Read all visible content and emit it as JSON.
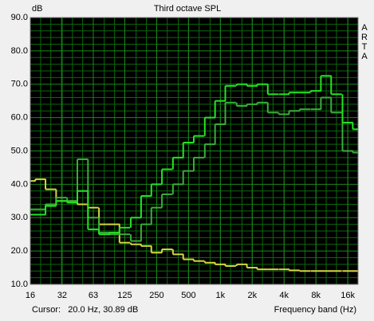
{
  "chart_data": {
    "type": "step",
    "title": "Third octave SPL",
    "y_label": "dB",
    "brand": "ARTA",
    "cursor": "Cursor:   20.0 Hz, 30.89 dB",
    "x_label": "Frequency band (Hz)",
    "log_x": true,
    "grid": true,
    "x": [
      16,
      20,
      25,
      31.5,
      40,
      50,
      63,
      80,
      100,
      125,
      160,
      200,
      250,
      315,
      400,
      500,
      630,
      800,
      1000,
      1250,
      1600,
      2000,
      2500,
      3150,
      4000,
      5000,
      6300,
      8000,
      10000,
      12500,
      16000,
      20000
    ],
    "xlim": [
      16,
      20000
    ],
    "xticks": [
      16,
      32,
      63,
      125,
      250,
      500,
      {
        "value": 1000,
        "label": "1k"
      },
      {
        "value": 2000,
        "label": "2k"
      },
      {
        "value": 4000,
        "label": "4k"
      },
      {
        "value": 8000,
        "label": "8k"
      },
      {
        "value": 16000,
        "label": "16k"
      }
    ],
    "ylim": [
      10,
      90
    ],
    "yticks": [
      {
        "value": 10,
        "label": "10.0"
      },
      {
        "value": 20,
        "label": "20.0"
      },
      {
        "value": 30,
        "label": "30.0"
      },
      {
        "value": 40,
        "label": "40.0"
      },
      {
        "value": 50,
        "label": "50.0"
      },
      {
        "value": 60,
        "label": "60.0"
      },
      {
        "value": 70,
        "label": "70.0"
      },
      {
        "value": 80,
        "label": "80.0"
      },
      {
        "value": 90,
        "label": "90.0"
      }
    ],
    "series": [
      {
        "color": "#d6d63c",
        "values": [
          41,
          41.5,
          38.5,
          35,
          35,
          34,
          33,
          28,
          28,
          22.5,
          22,
          21.5,
          19.5,
          20.5,
          19,
          17.5,
          17,
          16.5,
          16,
          15.5,
          16,
          15,
          14.5,
          14.5,
          14.5,
          14.2,
          14,
          14,
          14,
          14,
          14,
          14
        ]
      },
      {
        "color": "#3aae3a",
        "values": [
          32.5,
          32.5,
          34,
          36,
          35,
          47.5,
          30,
          25.5,
          25,
          25,
          23,
          28,
          33,
          37,
          40,
          44,
          48,
          52,
          58,
          64.5,
          63.5,
          64,
          64.5,
          61.5,
          61,
          62,
          62.5,
          62.5,
          66,
          61.5,
          50,
          49.5
        ]
      },
      {
        "color": "#22e622",
        "values": [
          30.9,
          30.9,
          33.5,
          35,
          34.5,
          38,
          26.5,
          25,
          25.5,
          27,
          30,
          36.5,
          40,
          44.5,
          48,
          52.5,
          54.5,
          60,
          65,
          69.5,
          70,
          69.5,
          70,
          67,
          67,
          67.5,
          67.5,
          68,
          72.5,
          67,
          58.5,
          56.5
        ]
      }
    ]
  }
}
